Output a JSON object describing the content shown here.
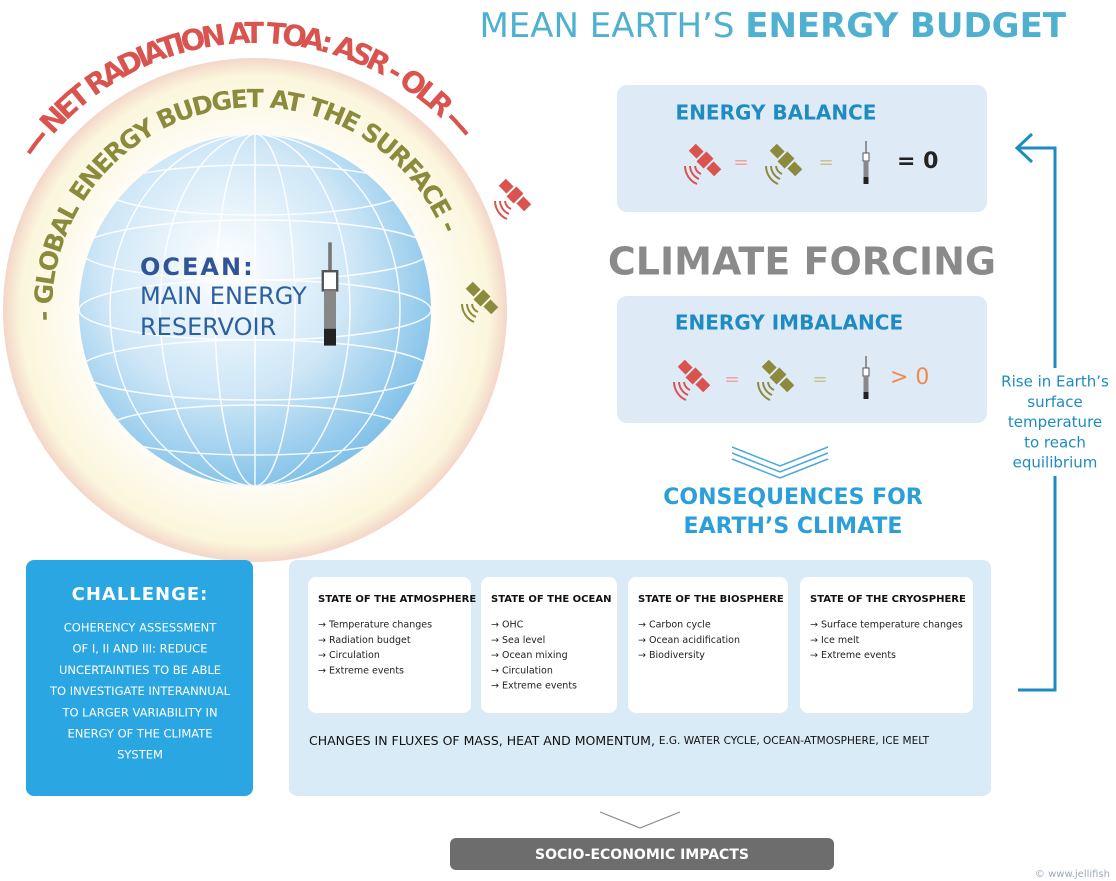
{
  "title": {
    "light": "MEAN EARTH’S",
    "bold": "ENERGY BUDGET"
  },
  "globe": {
    "outer_arc": "--- NET RADIATION AT TOA: ASR - OLR ---",
    "inner_arc": "- GLOBAL ENERGY BUDGET AT THE SURFACE -",
    "ocean_title": "OCEAN:",
    "ocean_text": [
      "MAIN ENERGY",
      "RESERVOIR"
    ]
  },
  "balance": {
    "title": "ENERGY BALANCE",
    "eq1": "=",
    "eq2": "=",
    "result": "= 0"
  },
  "forcing": "CLIMATE FORCING",
  "imbalance": {
    "title": "ENERGY IMBALANCE",
    "eq1": "=",
    "eq2": "=",
    "result": "> 0"
  },
  "consequences": [
    "CONSEQUENCES FOR",
    "EARTH’S CLIMATE"
  ],
  "feedback": [
    "Rise in Earth’s",
    "surface",
    "temperature",
    "to reach",
    "equilibrium"
  ],
  "challenge": {
    "title": "CHALLENGE:",
    "lines": [
      "COHERENCY ASSESSMENT",
      "OF I, II AND III: REDUCE",
      "UNCERTAINTIES TO BE ABLE",
      "TO INVESTIGATE INTERANNUAL",
      "TO LARGER VARIABILITY IN",
      "ENERGY OF THE CLIMATE",
      "SYSTEM"
    ]
  },
  "states": [
    {
      "title": "STATE OF THE ATMOSPHERE",
      "items": [
        "→ Temperature changes",
        "→ Radiation budget",
        "→ Circulation",
        "→ Extreme events"
      ]
    },
    {
      "title": "STATE OF THE OCEAN",
      "items": [
        "→ OHC",
        "→ Sea level",
        "→ Ocean mixing",
        "→ Circulation",
        "→ Extreme events"
      ]
    },
    {
      "title": "STATE OF THE BIOSPHERE",
      "items": [
        "→ Carbon cycle",
        "→ Ocean acidification",
        "→ Biodiversity"
      ]
    },
    {
      "title": "STATE OF THE CRYOSPHERE",
      "items": [
        "→ Surface temperature changes",
        "→ Ice melt",
        "→ Extreme events"
      ]
    }
  ],
  "fluxes": {
    "main": "CHANGES IN FLUXES OF MASS, HEAT AND MOMENTUM,",
    "examples": "E.G. WATER CYCLE, OCEAN-ATMOSPHERE, ICE MELT"
  },
  "impacts": "SOCIO-ECONOMIC IMPACTS",
  "credit": "© www.jellifish"
}
